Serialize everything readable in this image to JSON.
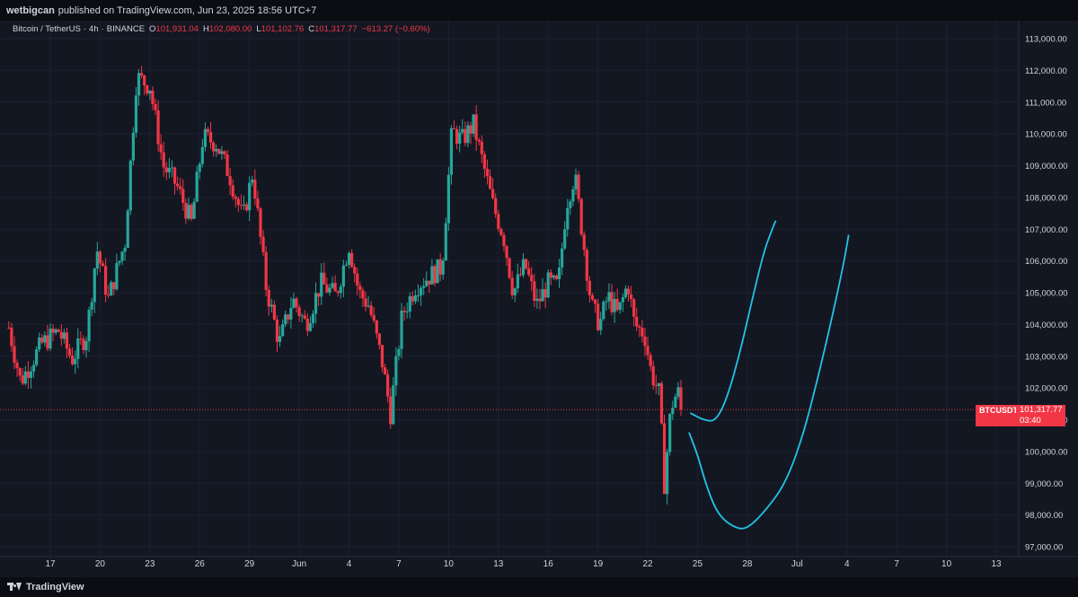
{
  "header": {
    "publisher": "wetbigcan",
    "published_text": "published on TradingView.com, Jun 23, 2025 18:56 UTC+7"
  },
  "symbol_bar": {
    "pair": "Bitcoin / TetherUS",
    "timeframe": "4h",
    "exchange": "BINANCE",
    "open_label": "O",
    "open": "101,931.04",
    "high_label": "H",
    "high": "102,080.00",
    "low_label": "L",
    "low": "101,102.76",
    "close_label": "C",
    "close": "101,317.77",
    "change": "−613.27 (−0.60%)"
  },
  "price_tag": {
    "symbol": "BTCUSDT",
    "price": "101,317.77",
    "countdown": "03:40"
  },
  "footer": {
    "brand": "TradingView"
  },
  "colors": {
    "background": "#131722",
    "up": "#26a69a",
    "down": "#f23645",
    "drawing": "#22c3e6",
    "axis_text": "#d1d4dc"
  },
  "chart_data": {
    "type": "candlestick",
    "symbol": "BTCUSDT",
    "interval": "4h",
    "y_axis": {
      "ylim": [
        96700,
        113300
      ],
      "ticks": [
        97000,
        98000,
        99000,
        100000,
        101000,
        102000,
        103000,
        104000,
        105000,
        106000,
        107000,
        108000,
        109000,
        110000,
        111000,
        112000,
        113000
      ],
      "tick_labels": [
        "97,000.00",
        "98,000.00",
        "99,000.00",
        "100,000.00",
        "101,000.00",
        "102,000.00",
        "103,000.00",
        "104,000.00",
        "105,000.00",
        "106,000.00",
        "107,000.00",
        "108,000.00",
        "109,000.00",
        "110,000.00",
        "111,000.00",
        "112,000.00",
        "113,000.00"
      ]
    },
    "x_axis": {
      "tick_labels": [
        "17",
        "20",
        "23",
        "26",
        "29",
        "Jun",
        "4",
        "7",
        "10",
        "13",
        "16",
        "19",
        "22",
        "25",
        "28",
        "Jul",
        "4",
        "7",
        "10",
        "13"
      ],
      "tick_days": [
        17,
        20,
        23,
        26,
        29,
        32,
        35,
        38,
        41,
        44,
        47,
        50,
        53,
        56,
        59,
        62,
        65,
        68,
        71,
        74
      ]
    },
    "current_price": 101317.77,
    "path_points": [
      [
        14.5,
        103900
      ],
      [
        15.2,
        102200
      ],
      [
        16.5,
        103400
      ],
      [
        17.5,
        103800
      ],
      [
        18.3,
        102900
      ],
      [
        19.2,
        103700
      ],
      [
        19.8,
        106400
      ],
      [
        20.5,
        104800
      ],
      [
        21.5,
        106600
      ],
      [
        22.2,
        111800
      ],
      [
        23,
        111500
      ],
      [
        23.8,
        109000
      ],
      [
        24.6,
        108400
      ],
      [
        25.5,
        107200
      ],
      [
        26.2,
        109900
      ],
      [
        27,
        109700
      ],
      [
        27.8,
        108700
      ],
      [
        28.6,
        107300
      ],
      [
        29.2,
        108800
      ],
      [
        30,
        105200
      ],
      [
        30.8,
        103400
      ],
      [
        31.6,
        104800
      ],
      [
        32.4,
        104000
      ],
      [
        33.3,
        105300
      ],
      [
        34.2,
        104900
      ],
      [
        35,
        106500
      ],
      [
        35.6,
        105000
      ],
      [
        36.2,
        104600
      ],
      [
        37,
        102800
      ],
      [
        37.5,
        101200
      ],
      [
        38.2,
        104300
      ],
      [
        39,
        105200
      ],
      [
        39.8,
        105500
      ],
      [
        40.6,
        105800
      ],
      [
        41.2,
        110100
      ],
      [
        41.8,
        109800
      ],
      [
        42.5,
        110300
      ],
      [
        43.1,
        109000
      ],
      [
        43.7,
        107700
      ],
      [
        44.3,
        106800
      ],
      [
        44.9,
        105000
      ],
      [
        45.6,
        105900
      ],
      [
        46.3,
        104600
      ],
      [
        47,
        105300
      ],
      [
        47.6,
        105200
      ],
      [
        48.1,
        107800
      ],
      [
        48.6,
        108700
      ],
      [
        49.1,
        106700
      ],
      [
        49.6,
        104600
      ],
      [
        50.1,
        104000
      ],
      [
        50.6,
        104900
      ],
      [
        51.2,
        104300
      ],
      [
        51.8,
        105300
      ],
      [
        52.2,
        104000
      ],
      [
        52.8,
        103700
      ],
      [
        53.2,
        102500
      ],
      [
        53.7,
        101800
      ],
      [
        54,
        99000
      ],
      [
        54.4,
        101400
      ],
      [
        54.8,
        101900
      ],
      [
        55.1,
        101318
      ]
    ],
    "drawings": [
      {
        "type": "projection-curve",
        "points": [
          [
            55.6,
            101200
          ],
          [
            56.4,
            100980
          ],
          [
            57.1,
            100950
          ],
          [
            57.8,
            101700
          ],
          [
            58.6,
            103200
          ],
          [
            59.3,
            104800
          ],
          [
            60,
            106300
          ],
          [
            60.5,
            107000
          ],
          [
            60.7,
            107250
          ]
        ]
      },
      {
        "type": "projection-curve",
        "points": [
          [
            55.5,
            100580
          ],
          [
            56,
            99900
          ],
          [
            56.6,
            98800
          ],
          [
            57.3,
            97950
          ],
          [
            58.4,
            97550
          ],
          [
            59.1,
            97600
          ],
          [
            60.2,
            98200
          ],
          [
            61.3,
            99000
          ],
          [
            62.3,
            100400
          ],
          [
            63.2,
            102200
          ],
          [
            64.1,
            104200
          ],
          [
            64.8,
            105900
          ],
          [
            65.1,
            106800
          ]
        ]
      }
    ]
  }
}
